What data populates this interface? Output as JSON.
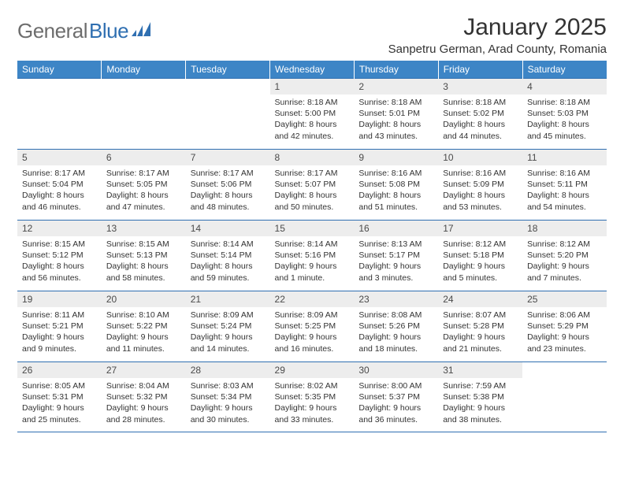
{
  "brand": {
    "word1": "General",
    "word2": "Blue"
  },
  "title": "January 2025",
  "location": "Sanpetru German, Arad County, Romania",
  "colors": {
    "header_bg": "#3d85c6",
    "header_text": "#ffffff",
    "rule": "#2f6fb1",
    "daynum_bg": "#ededed",
    "text": "#333333",
    "logo_gray": "#6d6d6d",
    "logo_blue": "#2f6fb1"
  },
  "weekdays": [
    "Sunday",
    "Monday",
    "Tuesday",
    "Wednesday",
    "Thursday",
    "Friday",
    "Saturday"
  ],
  "weeks": [
    [
      {
        "n": "",
        "l": [
          "",
          "",
          "",
          ""
        ]
      },
      {
        "n": "",
        "l": [
          "",
          "",
          "",
          ""
        ]
      },
      {
        "n": "",
        "l": [
          "",
          "",
          "",
          ""
        ]
      },
      {
        "n": "1",
        "l": [
          "Sunrise: 8:18 AM",
          "Sunset: 5:00 PM",
          "Daylight: 8 hours",
          "and 42 minutes."
        ]
      },
      {
        "n": "2",
        "l": [
          "Sunrise: 8:18 AM",
          "Sunset: 5:01 PM",
          "Daylight: 8 hours",
          "and 43 minutes."
        ]
      },
      {
        "n": "3",
        "l": [
          "Sunrise: 8:18 AM",
          "Sunset: 5:02 PM",
          "Daylight: 8 hours",
          "and 44 minutes."
        ]
      },
      {
        "n": "4",
        "l": [
          "Sunrise: 8:18 AM",
          "Sunset: 5:03 PM",
          "Daylight: 8 hours",
          "and 45 minutes."
        ]
      }
    ],
    [
      {
        "n": "5",
        "l": [
          "Sunrise: 8:17 AM",
          "Sunset: 5:04 PM",
          "Daylight: 8 hours",
          "and 46 minutes."
        ]
      },
      {
        "n": "6",
        "l": [
          "Sunrise: 8:17 AM",
          "Sunset: 5:05 PM",
          "Daylight: 8 hours",
          "and 47 minutes."
        ]
      },
      {
        "n": "7",
        "l": [
          "Sunrise: 8:17 AM",
          "Sunset: 5:06 PM",
          "Daylight: 8 hours",
          "and 48 minutes."
        ]
      },
      {
        "n": "8",
        "l": [
          "Sunrise: 8:17 AM",
          "Sunset: 5:07 PM",
          "Daylight: 8 hours",
          "and 50 minutes."
        ]
      },
      {
        "n": "9",
        "l": [
          "Sunrise: 8:16 AM",
          "Sunset: 5:08 PM",
          "Daylight: 8 hours",
          "and 51 minutes."
        ]
      },
      {
        "n": "10",
        "l": [
          "Sunrise: 8:16 AM",
          "Sunset: 5:09 PM",
          "Daylight: 8 hours",
          "and 53 minutes."
        ]
      },
      {
        "n": "11",
        "l": [
          "Sunrise: 8:16 AM",
          "Sunset: 5:11 PM",
          "Daylight: 8 hours",
          "and 54 minutes."
        ]
      }
    ],
    [
      {
        "n": "12",
        "l": [
          "Sunrise: 8:15 AM",
          "Sunset: 5:12 PM",
          "Daylight: 8 hours",
          "and 56 minutes."
        ]
      },
      {
        "n": "13",
        "l": [
          "Sunrise: 8:15 AM",
          "Sunset: 5:13 PM",
          "Daylight: 8 hours",
          "and 58 minutes."
        ]
      },
      {
        "n": "14",
        "l": [
          "Sunrise: 8:14 AM",
          "Sunset: 5:14 PM",
          "Daylight: 8 hours",
          "and 59 minutes."
        ]
      },
      {
        "n": "15",
        "l": [
          "Sunrise: 8:14 AM",
          "Sunset: 5:16 PM",
          "Daylight: 9 hours",
          "and 1 minute."
        ]
      },
      {
        "n": "16",
        "l": [
          "Sunrise: 8:13 AM",
          "Sunset: 5:17 PM",
          "Daylight: 9 hours",
          "and 3 minutes."
        ]
      },
      {
        "n": "17",
        "l": [
          "Sunrise: 8:12 AM",
          "Sunset: 5:18 PM",
          "Daylight: 9 hours",
          "and 5 minutes."
        ]
      },
      {
        "n": "18",
        "l": [
          "Sunrise: 8:12 AM",
          "Sunset: 5:20 PM",
          "Daylight: 9 hours",
          "and 7 minutes."
        ]
      }
    ],
    [
      {
        "n": "19",
        "l": [
          "Sunrise: 8:11 AM",
          "Sunset: 5:21 PM",
          "Daylight: 9 hours",
          "and 9 minutes."
        ]
      },
      {
        "n": "20",
        "l": [
          "Sunrise: 8:10 AM",
          "Sunset: 5:22 PM",
          "Daylight: 9 hours",
          "and 11 minutes."
        ]
      },
      {
        "n": "21",
        "l": [
          "Sunrise: 8:09 AM",
          "Sunset: 5:24 PM",
          "Daylight: 9 hours",
          "and 14 minutes."
        ]
      },
      {
        "n": "22",
        "l": [
          "Sunrise: 8:09 AM",
          "Sunset: 5:25 PM",
          "Daylight: 9 hours",
          "and 16 minutes."
        ]
      },
      {
        "n": "23",
        "l": [
          "Sunrise: 8:08 AM",
          "Sunset: 5:26 PM",
          "Daylight: 9 hours",
          "and 18 minutes."
        ]
      },
      {
        "n": "24",
        "l": [
          "Sunrise: 8:07 AM",
          "Sunset: 5:28 PM",
          "Daylight: 9 hours",
          "and 21 minutes."
        ]
      },
      {
        "n": "25",
        "l": [
          "Sunrise: 8:06 AM",
          "Sunset: 5:29 PM",
          "Daylight: 9 hours",
          "and 23 minutes."
        ]
      }
    ],
    [
      {
        "n": "26",
        "l": [
          "Sunrise: 8:05 AM",
          "Sunset: 5:31 PM",
          "Daylight: 9 hours",
          "and 25 minutes."
        ]
      },
      {
        "n": "27",
        "l": [
          "Sunrise: 8:04 AM",
          "Sunset: 5:32 PM",
          "Daylight: 9 hours",
          "and 28 minutes."
        ]
      },
      {
        "n": "28",
        "l": [
          "Sunrise: 8:03 AM",
          "Sunset: 5:34 PM",
          "Daylight: 9 hours",
          "and 30 minutes."
        ]
      },
      {
        "n": "29",
        "l": [
          "Sunrise: 8:02 AM",
          "Sunset: 5:35 PM",
          "Daylight: 9 hours",
          "and 33 minutes."
        ]
      },
      {
        "n": "30",
        "l": [
          "Sunrise: 8:00 AM",
          "Sunset: 5:37 PM",
          "Daylight: 9 hours",
          "and 36 minutes."
        ]
      },
      {
        "n": "31",
        "l": [
          "Sunrise: 7:59 AM",
          "Sunset: 5:38 PM",
          "Daylight: 9 hours",
          "and 38 minutes."
        ]
      },
      {
        "n": "",
        "l": [
          "",
          "",
          "",
          ""
        ]
      }
    ]
  ]
}
